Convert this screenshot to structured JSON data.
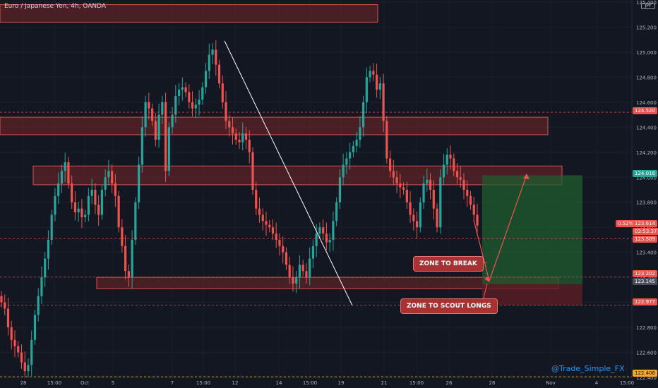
{
  "header": {
    "title": "Euro / Japanese Yen, 4h, OANDA",
    "currency": "JPY"
  },
  "watermark": "@Trade_Simple_FX",
  "annotations": {
    "break_label": "ZONE TO BREAK",
    "longs_label": "ZONE TO SCOUT LONGS"
  },
  "price_tags": {
    "t1": "124.520",
    "t2": "124.016",
    "pct": "0.52%",
    "cur": "123.614",
    "timer": "03:53:37",
    "t3": "123.509",
    "t4": "123.202",
    "t5": "123.145",
    "t6": "122.977",
    "t7": "122.406"
  },
  "colors": {
    "background": "#131722",
    "bull": "#26a69a",
    "bear": "#ef5350",
    "zone_fill": "#8b2a2a",
    "zone_border": "#d9534f",
    "target_green": "#1f5d2e",
    "stop_red": "#5c1d24",
    "watermark": "#2196f3"
  },
  "chart_data": {
    "type": "candlestick",
    "title": "Euro / Japanese Yen, 4h, OANDA",
    "y_ticks": [
      "125.400",
      "125.200",
      "125.000",
      "124.800",
      "124.600",
      "124.400",
      "124.200",
      "124.000",
      "123.800",
      "123.600",
      "123.400",
      "123.200",
      "123.000",
      "122.800",
      "122.600",
      "122.400"
    ],
    "x_ticks": [
      "28",
      "15:00",
      "Oct",
      "5",
      "7",
      "15:00",
      "12",
      "14",
      "15:00",
      "19",
      "21",
      "15:00",
      "26",
      "28",
      "Nov",
      "4",
      "15:00"
    ],
    "ylim": [
      122.4,
      125.4
    ],
    "candles_close_path": [
      123.0,
      122.95,
      122.8,
      122.7,
      122.65,
      122.6,
      122.52,
      122.45,
      122.5,
      122.7,
      122.9,
      123.05,
      123.2,
      123.35,
      123.5,
      123.7,
      123.85,
      123.95,
      124.05,
      124.12,
      123.95,
      123.8,
      123.72,
      123.75,
      123.68,
      123.7,
      123.85,
      123.9,
      123.78,
      123.7,
      123.9,
      124.0,
      124.05,
      123.95,
      123.85,
      123.6,
      123.45,
      123.25,
      123.2,
      123.5,
      123.8,
      124.1,
      124.4,
      124.6,
      124.55,
      124.45,
      124.3,
      124.5,
      124.6,
      124.05,
      124.4,
      124.5,
      124.65,
      124.7,
      124.72,
      124.68,
      124.6,
      124.55,
      124.58,
      124.62,
      124.72,
      124.85,
      124.98,
      125.02,
      124.9,
      124.75,
      124.6,
      124.45,
      124.4,
      124.35,
      124.3,
      124.28,
      124.35,
      124.3,
      124.2,
      123.9,
      123.75,
      123.7,
      123.65,
      123.62,
      123.6,
      123.55,
      123.5,
      123.45,
      123.4,
      123.3,
      123.2,
      123.15,
      123.2,
      123.3,
      123.25,
      123.2,
      123.35,
      123.45,
      123.55,
      123.6,
      123.55,
      123.48,
      123.5,
      123.65,
      123.8,
      124.0,
      124.1,
      124.15,
      124.2,
      124.25,
      124.3,
      124.4,
      124.6,
      124.8,
      124.85,
      124.82,
      124.7,
      124.75,
      124.45,
      124.15,
      124.05,
      124.0,
      123.95,
      123.92,
      123.9,
      123.8,
      123.7,
      123.65,
      123.6,
      123.8,
      123.95,
      123.98,
      123.9,
      123.75,
      123.6,
      124.0,
      124.1,
      124.18,
      124.15,
      124.05,
      124.0,
      123.98,
      123.9,
      123.85,
      123.78,
      123.7,
      123.614
    ],
    "zones": [
      {
        "top": 125.38,
        "bottom": 125.24
      },
      {
        "top": 124.48,
        "bottom": 124.34
      },
      {
        "top": 124.09,
        "bottom": 123.94
      },
      {
        "top": 123.2,
        "bottom": 123.11
      }
    ],
    "position": {
      "entry": 123.145,
      "target": 124.016,
      "stop": 122.977
    },
    "annotations": [
      "ZONE TO BREAK",
      "ZONE TO SCOUT LONGS"
    ]
  }
}
